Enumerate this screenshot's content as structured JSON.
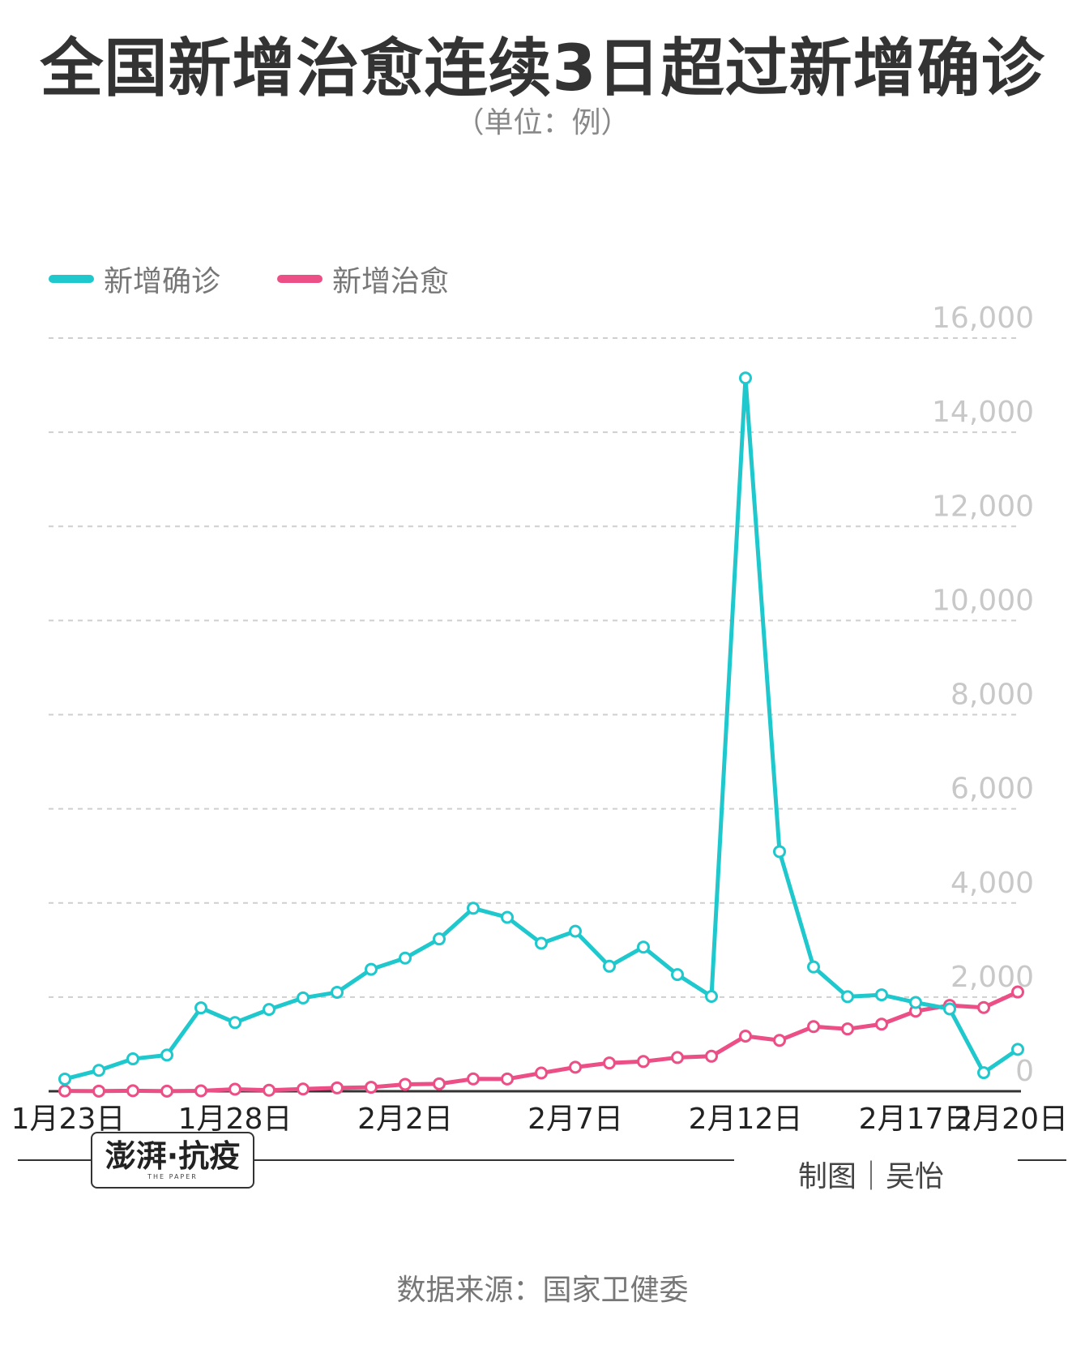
{
  "header": {
    "title": "全国新增治愈连续3日超过新增确诊",
    "subtitle": "（单位：例）"
  },
  "legend": {
    "items": [
      {
        "label": "新增确诊",
        "color": "#1ec8cc"
      },
      {
        "label": "新增治愈",
        "color": "#ec4e86"
      }
    ]
  },
  "chart_data": {
    "type": "line",
    "x": [
      "1月23日",
      "1月24日",
      "1月25日",
      "1月26日",
      "1月27日",
      "1月28日",
      "1月29日",
      "1月30日",
      "1月31日",
      "2月1日",
      "2月2日",
      "2月3日",
      "2月4日",
      "2月5日",
      "2月6日",
      "2月7日",
      "2月8日",
      "2月9日",
      "2月10日",
      "2月11日",
      "2月12日",
      "2月13日",
      "2月14日",
      "2月15日",
      "2月16日",
      "2月17日",
      "2月18日",
      "2月19日",
      "2月20日"
    ],
    "x_tick_labels": [
      "1月23日",
      "1月28日",
      "2月2日",
      "2月7日",
      "2月12日",
      "2月17日",
      "2月20日"
    ],
    "series": [
      {
        "name": "新增确诊",
        "color": "#1ec8cc",
        "values": [
          259,
          444,
          688,
          769,
          1771,
          1459,
          1737,
          1982,
          2102,
          2590,
          2829,
          3235,
          3887,
          3694,
          3143,
          3399,
          2656,
          3062,
          2478,
          2015,
          15152,
          5090,
          2641,
          2009,
          2048,
          1886,
          1749,
          394,
          889
        ]
      },
      {
        "name": "新增治愈",
        "color": "#ec4e86",
        "values": [
          6,
          3,
          11,
          2,
          9,
          43,
          21,
          47,
          72,
          85,
          147,
          157,
          262,
          261,
          387,
          510,
          600,
          632,
          716,
          744,
          1171,
          1081,
          1373,
          1323,
          1425,
          1701,
          1824,
          1779,
          2109
        ]
      }
    ],
    "yticks": [
      "0",
      "2,000",
      "4,000",
      "6,000",
      "8,000",
      "10,000",
      "12,000",
      "14,000",
      "16,000"
    ],
    "ylim": [
      0,
      16000
    ],
    "grid": true,
    "legend_position": "top-left"
  },
  "branding": {
    "logo_main": "澎湃·抗疫",
    "logo_sub": "THE PAPER",
    "credit": "制图｜吴怡"
  },
  "source": "数据来源：国家卫健委"
}
